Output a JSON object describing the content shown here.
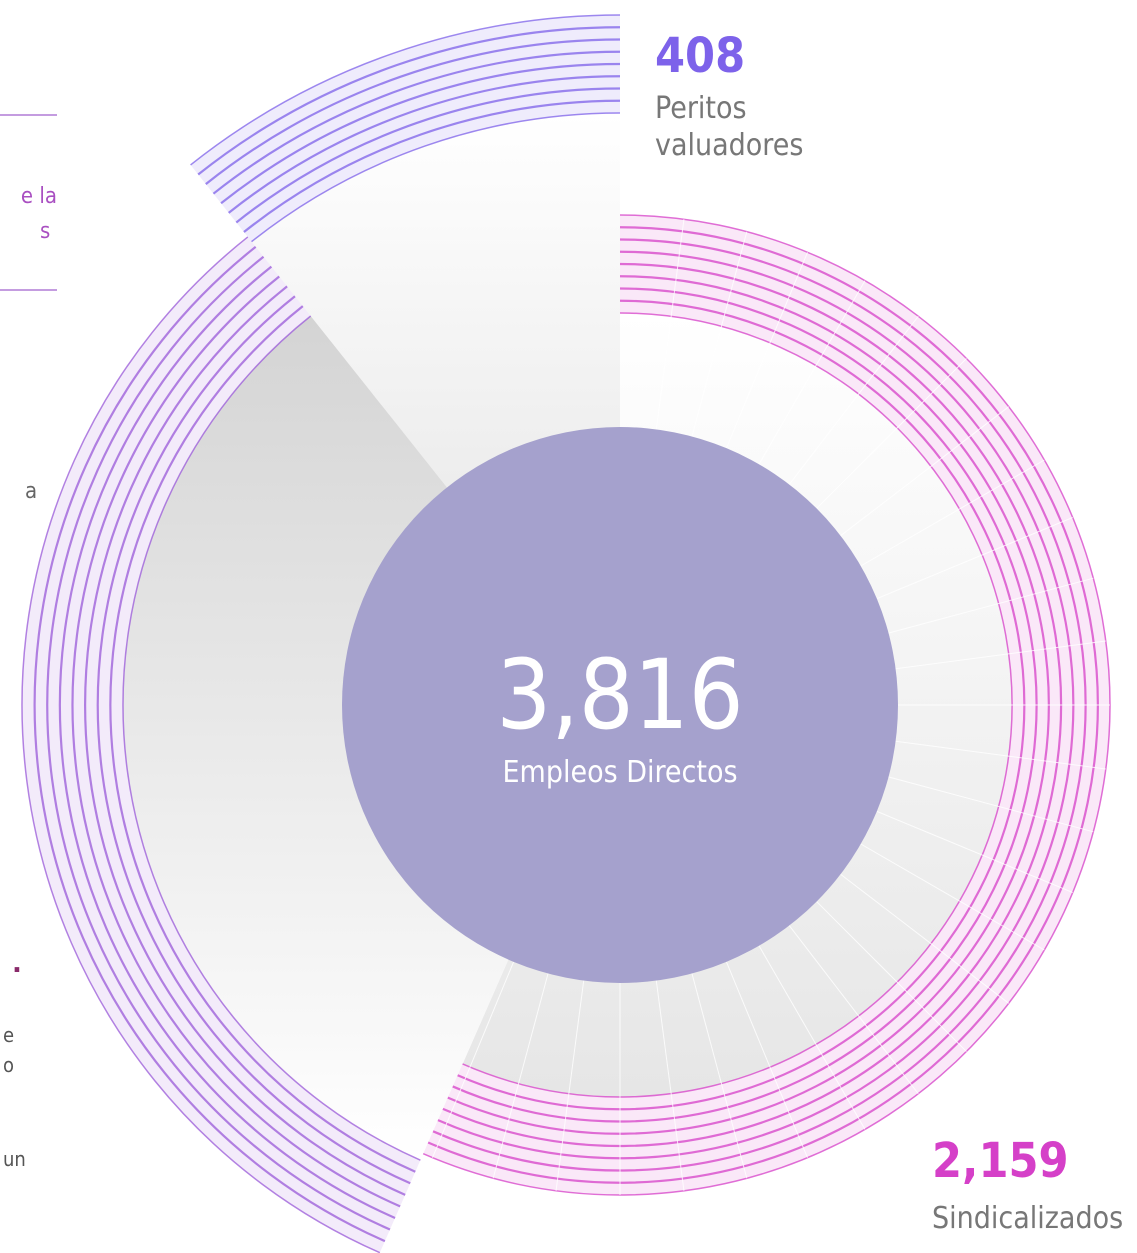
{
  "chart_data": {
    "type": "radial",
    "total": {
      "value": 3816,
      "label": "3,816",
      "caption": "Empleos Directos",
      "color": "#a5a1cd"
    },
    "segments": [
      {
        "name": [
          "Peritos",
          "valuadores"
        ],
        "value": 408,
        "value_label": "408",
        "color": "#7d62ea"
      },
      {
        "name": [
          "Sindicalizados"
        ],
        "value": 2159,
        "value_label": "2,159",
        "color": "#d540c8"
      }
    ],
    "rest_color": "#9a5ad8",
    "side_fragments": [
      "e la",
      "s",
      "a",
      ".",
      "e",
      "o",
      "un"
    ]
  }
}
